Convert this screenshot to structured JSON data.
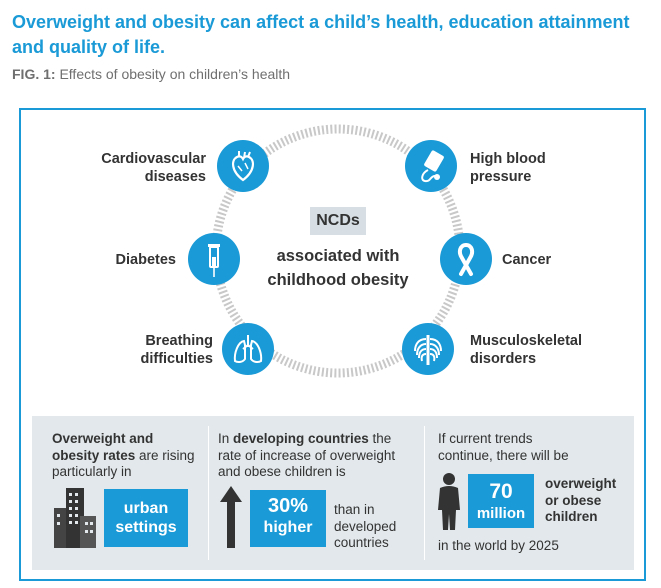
{
  "header": {
    "title": "Overweight and obesity can affect a child’s health, education attainment and quality of life.",
    "fig_label": "FIG. 1:",
    "fig_caption": "Effects of obesity on children’s health"
  },
  "diagram": {
    "center_label": "NCDs",
    "center_text": "associated with childhood obesity",
    "conditions": [
      {
        "label": "Cardiovascular diseases",
        "icon": "heart-icon"
      },
      {
        "label": "High blood pressure",
        "icon": "blood-pressure-cuff-icon"
      },
      {
        "label": "Diabetes",
        "icon": "syringe-icon"
      },
      {
        "label": "Cancer",
        "icon": "ribbon-icon"
      },
      {
        "label": "Breathing difficulties",
        "icon": "lungs-icon"
      },
      {
        "label": "Musculoskeletal disorders",
        "icon": "ribcage-icon"
      }
    ]
  },
  "facts": {
    "urban": {
      "bold": "Overweight and obesity rates",
      "rest": " are rising particularly in",
      "box": "urban settings",
      "icon": "buildings-icon"
    },
    "developing": {
      "pre": "In ",
      "bold": "developing countries",
      "rest": " the rate of increase of overweight and obese children is",
      "box_value": "30%",
      "box_word": "higher",
      "tail": "than in developed countries",
      "icon": "arrow-up-icon"
    },
    "trend": {
      "lead": "If current trends continue, there will be",
      "box_value": "70",
      "box_word": "million",
      "side": "overweight or obese children",
      "foot": "in the world by 2025",
      "icon": "child-silhouette-icon"
    }
  },
  "colors": {
    "accent": "#1a9ad6",
    "panel": "#e2e8eb",
    "text": "#333333"
  }
}
